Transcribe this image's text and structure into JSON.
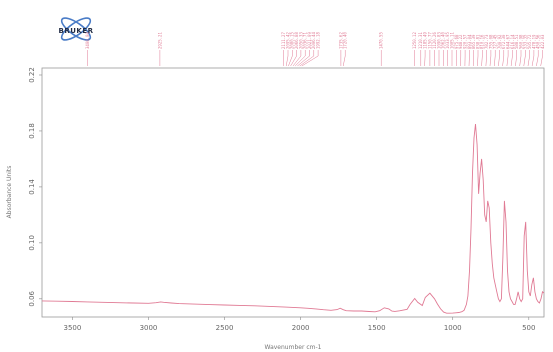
{
  "logo": {
    "text": "BRUKER"
  },
  "colors": {
    "spectrum": "#e07a94",
    "peak_labels": "#e07a94",
    "axis": "#777777",
    "logo_blue": "#4a7cc7"
  },
  "chart_data": {
    "type": "line",
    "xlabel": "Wavenumber cm-1",
    "ylabel": "Absorbance Units",
    "x_direction": "decreasing",
    "xlim": [
      3700,
      400
    ],
    "ylim": [
      0.047,
      0.225
    ],
    "x_ticks": [
      "3500",
      "3000",
      "2500",
      "2000",
      "1500",
      "1000",
      "500"
    ],
    "y_ticks": [
      "0.06",
      "0.10",
      "0.14",
      "0.18",
      "0.22"
    ],
    "grid": false,
    "series": [
      {
        "x": [
          3700,
          3600,
          3500,
          3400,
          3300,
          3200,
          3100,
          3000,
          2950,
          2920,
          2900,
          2850,
          2800,
          2700,
          2600,
          2500,
          2400,
          2300,
          2200,
          2100,
          2000,
          1950,
          1900,
          1850,
          1800,
          1760,
          1740,
          1720,
          1700,
          1650,
          1600,
          1550,
          1510,
          1480,
          1450,
          1420,
          1400,
          1380,
          1350,
          1300,
          1280,
          1250,
          1230,
          1200,
          1180,
          1150,
          1120,
          1100,
          1080,
          1060,
          1040,
          1020,
          1000,
          980,
          960,
          940,
          925,
          910,
          900,
          890,
          880,
          870,
          860,
          850,
          840,
          830,
          820,
          810,
          800,
          790,
          780,
          770,
          760,
          750,
          740,
          730,
          720,
          710,
          700,
          690,
          680,
          670,
          660,
          650,
          640,
          630,
          620,
          610,
          600,
          590,
          580,
          570,
          560,
          550,
          540,
          530,
          520,
          510,
          500,
          490,
          480,
          470,
          460,
          450,
          440,
          430,
          420,
          410,
          400
        ],
        "y": [
          0.0585,
          0.0583,
          0.0581,
          0.0578,
          0.0575,
          0.0572,
          0.057,
          0.0568,
          0.0572,
          0.0578,
          0.0575,
          0.057,
          0.0566,
          0.0562,
          0.0559,
          0.0556,
          0.0553,
          0.055,
          0.0546,
          0.0541,
          0.0536,
          0.0532,
          0.0528,
          0.0522,
          0.0518,
          0.0523,
          0.0533,
          0.0522,
          0.0515,
          0.0513,
          0.0513,
          0.0509,
          0.0507,
          0.0515,
          0.0536,
          0.0528,
          0.0512,
          0.051,
          0.0514,
          0.0525,
          0.056,
          0.0602,
          0.0575,
          0.0552,
          0.061,
          0.064,
          0.06,
          0.0562,
          0.0528,
          0.0505,
          0.0497,
          0.0497,
          0.0498,
          0.05,
          0.0502,
          0.0508,
          0.0518,
          0.056,
          0.062,
          0.08,
          0.11,
          0.15,
          0.175,
          0.185,
          0.17,
          0.135,
          0.15,
          0.16,
          0.145,
          0.12,
          0.115,
          0.13,
          0.125,
          0.1,
          0.085,
          0.075,
          0.07,
          0.065,
          0.06,
          0.058,
          0.06,
          0.09,
          0.13,
          0.115,
          0.08,
          0.065,
          0.06,
          0.058,
          0.056,
          0.056,
          0.06,
          0.065,
          0.06,
          0.058,
          0.06,
          0.105,
          0.115,
          0.08,
          0.065,
          0.062,
          0.07,
          0.075,
          0.065,
          0.06,
          0.058,
          0.057,
          0.06,
          0.065,
          0.064
        ]
      }
    ],
    "peak_markers": [
      {
        "x": 3400,
        "label": "3400.00"
      },
      {
        "x": 2925,
        "label": "2925.21"
      },
      {
        "x": 2111,
        "label": "2111.27"
      },
      {
        "x": 2095,
        "label": "2095.42"
      },
      {
        "x": 2080,
        "label": "2080.15"
      },
      {
        "x": 2066,
        "label": "2066.88"
      },
      {
        "x": 2050,
        "label": "2050.33"
      },
      {
        "x": 2036,
        "label": "2036.71"
      },
      {
        "x": 2021,
        "label": "2021.09"
      },
      {
        "x": 2006,
        "label": "2006.44"
      },
      {
        "x": 1992,
        "label": "1992.18"
      },
      {
        "x": 1735,
        "label": "1735.62"
      },
      {
        "x": 1720,
        "label": "1720.40"
      },
      {
        "x": 1470,
        "label": "1470.55"
      },
      {
        "x": 1250,
        "label": "1250.12"
      },
      {
        "x": 1210,
        "label": "1210.31"
      },
      {
        "x": 1185,
        "label": "1185.49"
      },
      {
        "x": 1150,
        "label": "1150.77"
      },
      {
        "x": 1120,
        "label": "1120.26"
      },
      {
        "x": 1090,
        "label": "1090.83"
      },
      {
        "x": 1062,
        "label": "1062.40"
      },
      {
        "x": 1033,
        "label": "1033.95"
      },
      {
        "x": 1005,
        "label": "1005.11"
      },
      {
        "x": 975,
        "label": "975.68"
      },
      {
        "x": 948,
        "label": "948.22"
      },
      {
        "x": 920,
        "label": "920.57"
      },
      {
        "x": 893,
        "label": "893.04"
      },
      {
        "x": 865,
        "label": "865.39"
      },
      {
        "x": 838,
        "label": "838.81"
      },
      {
        "x": 810,
        "label": "810.16"
      },
      {
        "x": 782,
        "label": "782.73"
      },
      {
        "x": 755,
        "label": "755.08"
      },
      {
        "x": 727,
        "label": "727.45"
      },
      {
        "x": 700,
        "label": "700.92"
      },
      {
        "x": 672,
        "label": "672.30"
      },
      {
        "x": 644,
        "label": "644.67"
      },
      {
        "x": 616,
        "label": "616.14"
      },
      {
        "x": 588,
        "label": "588.51"
      },
      {
        "x": 560,
        "label": "560.98"
      },
      {
        "x": 533,
        "label": "533.35"
      },
      {
        "x": 505,
        "label": "505.72"
      },
      {
        "x": 478,
        "label": "478.19"
      },
      {
        "x": 450,
        "label": "450.56"
      },
      {
        "x": 422,
        "label": "422.03"
      }
    ]
  }
}
